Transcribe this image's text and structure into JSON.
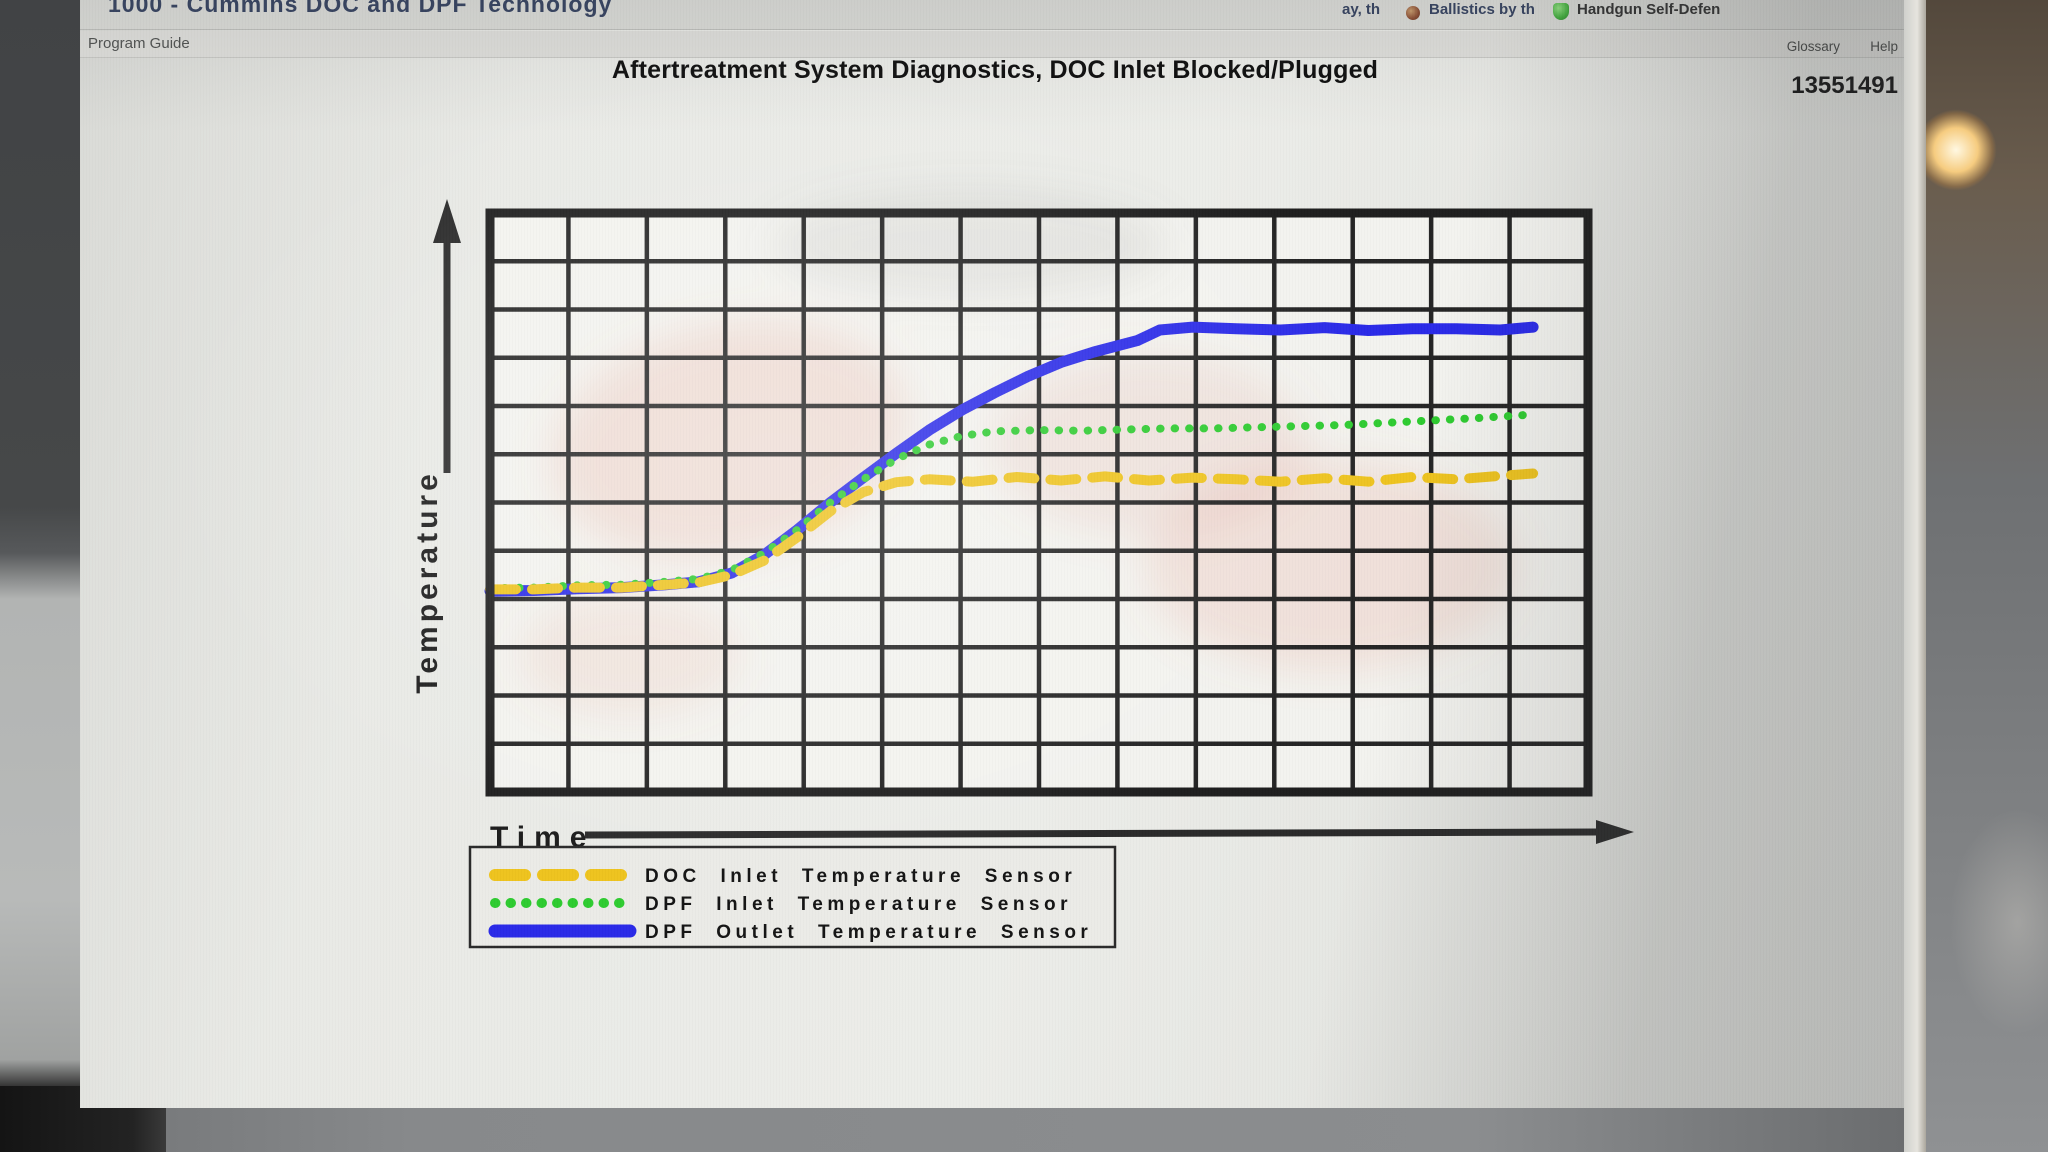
{
  "browser_bar": {
    "page_title_fragment": "1000 - Cummins DOC and DPF Technology",
    "bookmark_fragment": "ay, th",
    "bookmark_ballistics": "Ballistics by th",
    "bookmark_handgun": "Handgun Self-Defen"
  },
  "header": {
    "left_label": "Program Guide",
    "glossary_link": "Glossary",
    "help_link": "Help"
  },
  "page": {
    "title": "Aftertreatment System Diagnostics, DOC Inlet Blocked/Plugged",
    "doc_number": "13551491"
  },
  "chart_data": {
    "type": "line",
    "title": "Aftertreatment System Diagnostics, DOC Inlet Blocked/Plugged",
    "xlabel": "Time",
    "ylabel": "Temperature",
    "x_range_units": [
      0,
      100
    ],
    "y_range_units": [
      0,
      100
    ],
    "axis_ticks": "none (unlabeled axes with direction arrows)",
    "grid": {
      "cols": 14,
      "rows": 12,
      "line_color": "#242424",
      "border_color": "#1e1e1e"
    },
    "legend_position": "bottom-left",
    "plot_bg": "#f3f3ef",
    "series": [
      {
        "name": "DOC Inlet Temperature Sensor",
        "color": "#eec31e",
        "style": "dashed",
        "points": [
          [
            0,
            35
          ],
          [
            4,
            35
          ],
          [
            8,
            35.3
          ],
          [
            12,
            35.3
          ],
          [
            16,
            35.8
          ],
          [
            19,
            36.2
          ],
          [
            22,
            37.5
          ],
          [
            25,
            40
          ],
          [
            28,
            44
          ],
          [
            31,
            48.5
          ],
          [
            34,
            51.8
          ],
          [
            37,
            53.5
          ],
          [
            40,
            54
          ],
          [
            44,
            53.6
          ],
          [
            48,
            54.4
          ],
          [
            52,
            53.8
          ],
          [
            56,
            54.5
          ],
          [
            60,
            53.8
          ],
          [
            64,
            54.3
          ],
          [
            68,
            54
          ],
          [
            72,
            53.6
          ],
          [
            76,
            54.2
          ],
          [
            80,
            53.6
          ],
          [
            84,
            54.4
          ],
          [
            88,
            54
          ],
          [
            92,
            54.6
          ],
          [
            95,
            55
          ]
        ]
      },
      {
        "name": "DPF Inlet Temperature Sensor",
        "color": "#2ecb30",
        "style": "dotted",
        "points": [
          [
            0,
            35.2
          ],
          [
            4,
            35.3
          ],
          [
            8,
            35.7
          ],
          [
            12,
            35.8
          ],
          [
            16,
            36.3
          ],
          [
            19,
            36.8
          ],
          [
            22,
            38.3
          ],
          [
            25,
            41.3
          ],
          [
            28,
            45.3
          ],
          [
            31,
            50
          ],
          [
            34,
            54
          ],
          [
            37,
            57.5
          ],
          [
            40,
            60
          ],
          [
            43,
            61.5
          ],
          [
            46,
            62.3
          ],
          [
            50,
            62.5
          ],
          [
            54,
            62.4
          ],
          [
            58,
            62.6
          ],
          [
            62,
            62.8
          ],
          [
            66,
            62.8
          ],
          [
            70,
            63
          ],
          [
            74,
            63.2
          ],
          [
            78,
            63.4
          ],
          [
            82,
            63.8
          ],
          [
            86,
            64.2
          ],
          [
            90,
            64.6
          ],
          [
            95,
            65.2
          ]
        ]
      },
      {
        "name": "DPF Outlet Temperature Sensor",
        "color": "#2a2ae8",
        "style": "solid",
        "points": [
          [
            0,
            34.7
          ],
          [
            4,
            34.8
          ],
          [
            8,
            35.1
          ],
          [
            12,
            35.3
          ],
          [
            16,
            35.8
          ],
          [
            19,
            36.3
          ],
          [
            22,
            37.8
          ],
          [
            25,
            41
          ],
          [
            28,
            45.3
          ],
          [
            31,
            50
          ],
          [
            34,
            54.3
          ],
          [
            37,
            58.5
          ],
          [
            40,
            62.5
          ],
          [
            43,
            66
          ],
          [
            46,
            69
          ],
          [
            49,
            71.8
          ],
          [
            52,
            74.2
          ],
          [
            55,
            76
          ],
          [
            57,
            77
          ],
          [
            59,
            78
          ],
          [
            61,
            79.8
          ],
          [
            64,
            80.3
          ],
          [
            68,
            80
          ],
          [
            72,
            79.8
          ],
          [
            76,
            80.2
          ],
          [
            80,
            79.7
          ],
          [
            84,
            80
          ],
          [
            88,
            80
          ],
          [
            92,
            79.8
          ],
          [
            95,
            80.3
          ]
        ]
      }
    ]
  }
}
